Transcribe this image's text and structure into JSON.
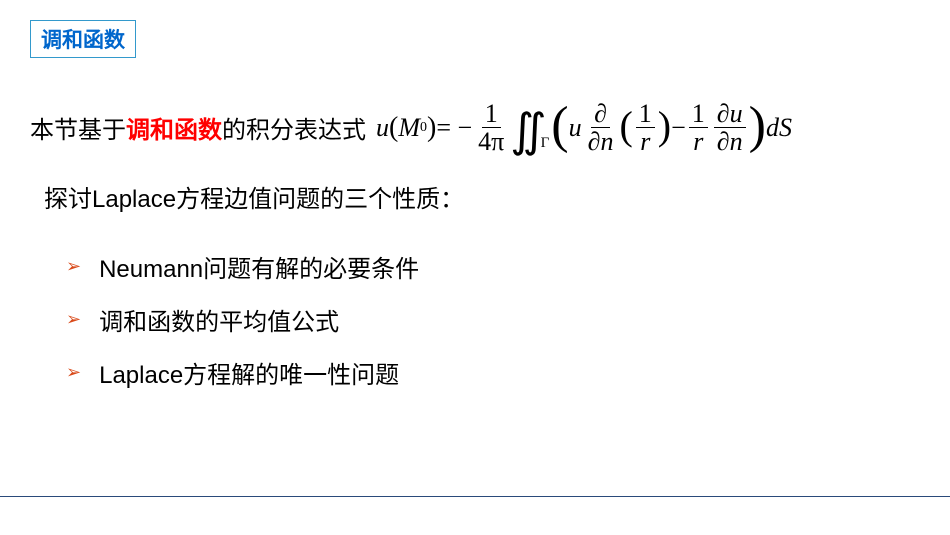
{
  "title": {
    "text": "调和函数",
    "color": "#0066cc",
    "border_color": "#3399cc"
  },
  "line1": {
    "prefix": "本节基于",
    "highlight": "调和函数",
    "highlight_color": "#ff0000",
    "suffix": "的积分表达式"
  },
  "formula": {
    "lhs_u": "u",
    "lhs_M": "M",
    "lhs_sub": "0",
    "eq": " = − ",
    "frac1_num": "1",
    "frac1_den": "4π",
    "int_sub": "Γ",
    "term_u": "u",
    "pd_frac_num": "∂",
    "pd_frac_den_n": "∂n",
    "inv_r_num": "1",
    "inv_r_den": "r",
    "minus": " − ",
    "frac_1r_num": "1",
    "frac_1r_den": "r",
    "du_num": "∂u",
    "du_den": "∂n",
    "dS": "dS"
  },
  "line2": "探讨Laplace方程边值问题的三个性质：",
  "bullets": {
    "marker": "➢",
    "marker_color": "#d94a1a",
    "items": [
      "Neumann问题有解的必要条件",
      "调和函数的平均值公式",
      "Laplace方程解的唯一性问题"
    ]
  },
  "bottom_line_color": "#2a4a7a"
}
